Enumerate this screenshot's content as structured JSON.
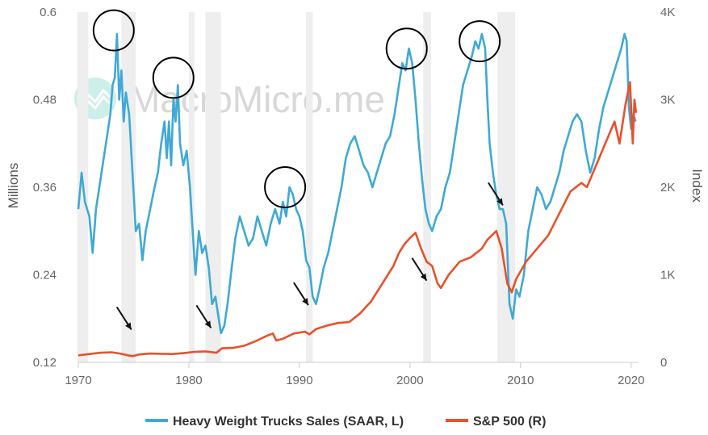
{
  "watermark": {
    "text": "MacroMicro.me"
  },
  "chart_data": {
    "type": "line",
    "title": "",
    "xlabel": "",
    "ylabel_left": "Millions",
    "ylabel_right": "Index",
    "xlim": [
      1970,
      2020.6
    ],
    "ylim_left": [
      0.12,
      0.6
    ],
    "ylim_right": [
      0,
      4000
    ],
    "x_ticks": [
      {
        "value": 1970,
        "label": "1970"
      },
      {
        "value": 1980,
        "label": "1980"
      },
      {
        "value": 1990,
        "label": "1990"
      },
      {
        "value": 2000,
        "label": "2000"
      },
      {
        "value": 2010,
        "label": "2010"
      },
      {
        "value": 2020,
        "label": "2020"
      }
    ],
    "y_ticks_left": [
      {
        "value": 0.12,
        "label": "0.12"
      },
      {
        "value": 0.24,
        "label": "0.24"
      },
      {
        "value": 0.36,
        "label": "0.36"
      },
      {
        "value": 0.48,
        "label": "0.48"
      },
      {
        "value": 0.6,
        "label": "0.6"
      }
    ],
    "y_ticks_right": [
      {
        "value": 0,
        "label": "0"
      },
      {
        "value": 1000,
        "label": "1K"
      },
      {
        "value": 2000,
        "label": "2K"
      },
      {
        "value": 3000,
        "label": "3K"
      },
      {
        "value": 4000,
        "label": "4K"
      }
    ],
    "recessions": [
      [
        1969.9,
        1970.9
      ],
      [
        1973.9,
        1975.2
      ],
      [
        1980.0,
        1980.5
      ],
      [
        1981.5,
        1982.9
      ],
      [
        1990.6,
        1991.2
      ],
      [
        2001.2,
        2001.9
      ],
      [
        2007.9,
        2009.5
      ]
    ],
    "recession_color": "#eeeeee",
    "legend_position": "bottom",
    "series": [
      {
        "name": "Heavy Weight Trucks Sales (SAAR, L)",
        "axis": "left",
        "color": "#40a9d4",
        "x": [
          1970.0,
          1970.3,
          1970.6,
          1971.0,
          1971.3,
          1971.6,
          1972.0,
          1972.3,
          1972.6,
          1972.9,
          1973.1,
          1973.3,
          1973.5,
          1973.7,
          1973.9,
          1974.1,
          1974.3,
          1974.6,
          1974.9,
          1975.2,
          1975.5,
          1975.8,
          1976.1,
          1976.5,
          1976.9,
          1977.2,
          1977.5,
          1977.8,
          1978.0,
          1978.2,
          1978.4,
          1978.6,
          1978.8,
          1979.0,
          1979.2,
          1979.5,
          1979.8,
          1980.1,
          1980.3,
          1980.6,
          1980.9,
          1981.2,
          1981.5,
          1981.8,
          1982.1,
          1982.4,
          1982.7,
          1982.9,
          1983.2,
          1983.5,
          1983.8,
          1984.2,
          1984.6,
          1985.0,
          1985.4,
          1985.8,
          1986.2,
          1986.6,
          1987.0,
          1987.4,
          1987.8,
          1988.2,
          1988.5,
          1988.8,
          1989.1,
          1989.4,
          1989.7,
          1990.0,
          1990.3,
          1990.6,
          1990.9,
          1991.2,
          1991.5,
          1991.8,
          1992.2,
          1992.6,
          1993.0,
          1993.4,
          1993.8,
          1994.2,
          1994.6,
          1995.0,
          1995.4,
          1995.8,
          1996.2,
          1996.6,
          1997.0,
          1997.4,
          1997.8,
          1998.2,
          1998.6,
          1999.0,
          1999.3,
          1999.6,
          1999.9,
          2000.2,
          2000.5,
          2000.8,
          2001.1,
          2001.4,
          2001.7,
          2002.0,
          2002.4,
          2002.8,
          2003.2,
          2003.6,
          2004.0,
          2004.4,
          2004.8,
          2005.2,
          2005.6,
          2005.9,
          2006.2,
          2006.5,
          2006.8,
          2007.0,
          2007.2,
          2007.5,
          2007.8,
          2008.1,
          2008.4,
          2008.7,
          2009.0,
          2009.3,
          2009.6,
          2009.9,
          2010.3,
          2010.7,
          2011.1,
          2011.5,
          2011.9,
          2012.3,
          2012.7,
          2013.1,
          2013.5,
          2013.9,
          2014.3,
          2014.7,
          2015.1,
          2015.5,
          2015.9,
          2016.3,
          2016.7,
          2017.1,
          2017.5,
          2017.9,
          2018.3,
          2018.7,
          2019.1,
          2019.4,
          2019.6,
          2019.8,
          2020.0,
          2020.2,
          2020.4
        ],
        "values": [
          0.33,
          0.38,
          0.34,
          0.32,
          0.27,
          0.33,
          0.37,
          0.4,
          0.43,
          0.46,
          0.5,
          0.51,
          0.57,
          0.48,
          0.52,
          0.45,
          0.49,
          0.46,
          0.38,
          0.3,
          0.31,
          0.26,
          0.3,
          0.33,
          0.36,
          0.38,
          0.42,
          0.45,
          0.4,
          0.45,
          0.39,
          0.48,
          0.45,
          0.5,
          0.42,
          0.39,
          0.41,
          0.36,
          0.31,
          0.24,
          0.3,
          0.27,
          0.28,
          0.25,
          0.2,
          0.21,
          0.18,
          0.16,
          0.17,
          0.2,
          0.24,
          0.29,
          0.32,
          0.3,
          0.28,
          0.29,
          0.32,
          0.3,
          0.28,
          0.31,
          0.33,
          0.31,
          0.34,
          0.32,
          0.36,
          0.35,
          0.33,
          0.32,
          0.3,
          0.26,
          0.25,
          0.21,
          0.2,
          0.22,
          0.25,
          0.27,
          0.3,
          0.33,
          0.36,
          0.4,
          0.42,
          0.43,
          0.41,
          0.39,
          0.38,
          0.36,
          0.38,
          0.4,
          0.42,
          0.43,
          0.46,
          0.5,
          0.53,
          0.52,
          0.55,
          0.53,
          0.48,
          0.42,
          0.37,
          0.33,
          0.31,
          0.3,
          0.32,
          0.33,
          0.36,
          0.38,
          0.42,
          0.46,
          0.5,
          0.52,
          0.54,
          0.56,
          0.55,
          0.57,
          0.55,
          0.48,
          0.42,
          0.38,
          0.35,
          0.33,
          0.33,
          0.31,
          0.2,
          0.18,
          0.22,
          0.21,
          0.24,
          0.3,
          0.33,
          0.36,
          0.35,
          0.33,
          0.34,
          0.36,
          0.38,
          0.41,
          0.43,
          0.45,
          0.46,
          0.45,
          0.41,
          0.38,
          0.4,
          0.44,
          0.47,
          0.49,
          0.51,
          0.53,
          0.55,
          0.57,
          0.56,
          0.47,
          0.44,
          0.46,
          0.45
        ]
      },
      {
        "name": "S&P 500 (R)",
        "axis": "right",
        "color": "#e8512c",
        "x": [
          1970.0,
          1971.0,
          1972.0,
          1973.0,
          1973.8,
          1974.5,
          1974.9,
          1975.5,
          1976.5,
          1977.5,
          1978.5,
          1979.5,
          1980.5,
          1981.5,
          1982.5,
          1983.0,
          1984.0,
          1985.0,
          1986.0,
          1987.0,
          1987.6,
          1987.9,
          1988.5,
          1989.5,
          1990.5,
          1990.9,
          1991.5,
          1992.5,
          1993.5,
          1994.5,
          1995.5,
          1996.5,
          1997.5,
          1998.5,
          1999.0,
          1999.5,
          2000.0,
          2000.5,
          2001.0,
          2001.5,
          2002.0,
          2002.5,
          2002.8,
          2003.5,
          2004.5,
          2005.5,
          2006.5,
          2007.0,
          2007.8,
          2008.3,
          2008.8,
          2009.2,
          2009.6,
          2010.5,
          2011.5,
          2012.5,
          2013.5,
          2014.5,
          2015.5,
          2016.0,
          2016.5,
          2017.5,
          2018.5,
          2018.95,
          2019.5,
          2019.9,
          2020.15,
          2020.3,
          2020.45
        ],
        "values": [
          80,
          95,
          110,
          115,
          100,
          80,
          70,
          90,
          100,
          98,
          95,
          105,
          120,
          125,
          110,
          160,
          165,
          190,
          240,
          300,
          330,
          250,
          270,
          330,
          350,
          320,
          380,
          420,
          450,
          460,
          560,
          700,
          900,
          1100,
          1250,
          1350,
          1420,
          1480,
          1300,
          1150,
          1100,
          900,
          850,
          1000,
          1150,
          1200,
          1300,
          1400,
          1500,
          1300,
          900,
          800,
          950,
          1150,
          1300,
          1450,
          1700,
          1950,
          2050,
          2000,
          2150,
          2450,
          2750,
          2500,
          2950,
          3200,
          2500,
          3000,
          2850
        ]
      }
    ]
  },
  "annotations": {
    "circles": [
      {
        "near_x": 1973.2,
        "near_y": 0.575
      },
      {
        "near_x": 1978.6,
        "near_y": 0.51
      },
      {
        "near_x": 1988.7,
        "near_y": 0.36
      },
      {
        "near_x": 1999.7,
        "near_y": 0.55
      },
      {
        "near_x": 2006.3,
        "near_y": 0.56
      }
    ],
    "arrows": [
      {
        "x": 1974.8,
        "y_right": 300
      },
      {
        "x": 1982.0,
        "y_right": 320
      },
      {
        "x": 1990.8,
        "y_right": 580
      },
      {
        "x": 2001.5,
        "y_right": 860
      },
      {
        "x": 2008.4,
        "y_right": 1720
      }
    ]
  }
}
